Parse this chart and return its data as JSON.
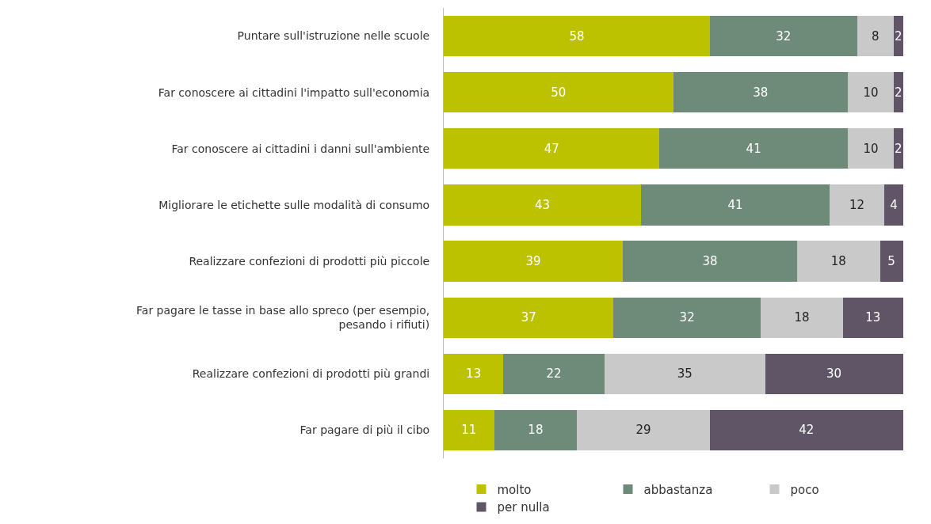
{
  "chart_data": {
    "type": "bar",
    "orientation": "horizontal",
    "stacked": true,
    "data_labels": true,
    "tick_labels": "y",
    "legend": "bottom",
    "categories": [
      "Puntare sull'istruzione nelle scuole",
      "Far conoscere ai cittadini l'impatto sull'economia",
      "Far conoscere ai cittadini i danni sull'ambiente",
      "Migliorare le etichette sulle modalità di consumo",
      "Realizzare confezioni di prodotti più piccole",
      "Far pagare le tasse in base allo spreco (per esempio,\npesando i rifiuti)",
      "Realizzare confezioni di prodotti più grandi",
      "Far pagare di più il cibo"
    ],
    "series": [
      {
        "name": "molto",
        "color": "#bcc200",
        "values": [
          58,
          50,
          47,
          43,
          39,
          37,
          13,
          11
        ]
      },
      {
        "name": "abbastanza",
        "color": "#6e8a78",
        "values": [
          32,
          38,
          41,
          41,
          38,
          32,
          22,
          18
        ]
      },
      {
        "name": "poco",
        "color": "#c9c9c9",
        "values": [
          8,
          10,
          10,
          12,
          18,
          18,
          35,
          29
        ]
      },
      {
        "name": "per nulla",
        "color": "#5f5567",
        "values": [
          2,
          2,
          2,
          4,
          5,
          13,
          30,
          42
        ]
      }
    ]
  }
}
